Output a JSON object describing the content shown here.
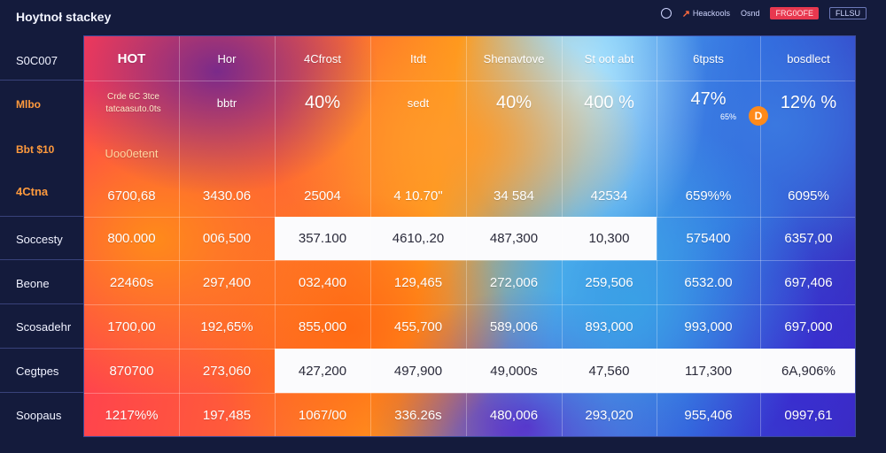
{
  "app": {
    "title": "Hoytnoł stackey"
  },
  "toolbar": {
    "link_label": "Heackools",
    "mid_label": "Osnd",
    "badge": "FRG0OFE",
    "pill": "FLLSU"
  },
  "row_labels": [
    "S0C007",
    "Mlbo",
    "Bbt $10",
    "4Ctna",
    "Soccesty",
    "Beone",
    "Scosadehr",
    "Cegtpes",
    "Soopaus"
  ],
  "headers": [
    "HOT",
    "Hor",
    "4Cfrost",
    "Itdt",
    "Shenavtove",
    "St oot abt",
    "6tpsts",
    "bosdlect"
  ],
  "row2": {
    "cell1": "Crde 6C 3tce tatcaasuto.0ts",
    "c2": "bbtr",
    "c3": "40%",
    "c4": "sedt",
    "c5": "40%",
    "c6": "400 %",
    "c7": "47%",
    "c7_sub": "65%",
    "coin": "D",
    "c8": "12% %"
  },
  "row3": {
    "c1": "Uoo0etent"
  },
  "row4": [
    "6700,68",
    "3430.06",
    "25004",
    "4 10.70\"",
    "34 584",
    "42534",
    "659%%",
    "6095%"
  ],
  "rows": [
    [
      "800.000",
      "006,500",
      "357.100",
      "4610,.20",
      "487,300",
      "10,300",
      "575400",
      "6357,00"
    ],
    [
      "22460s",
      "297,400",
      "032,400",
      "129,465",
      "272,006",
      "259,506",
      "6532.00",
      "697,406"
    ],
    [
      "1700,00",
      "192,65%",
      "855,000",
      "455,700",
      "589,006",
      "893,000",
      "993,000",
      "697,000"
    ],
    [
      "870700",
      "273,060",
      "427,200",
      "497,900",
      "49,000s",
      "47,560",
      "117,300",
      "6A,906%"
    ],
    [
      "1217%%",
      "197,485",
      "1067/00",
      "336.26s",
      "480,006",
      "293,020",
      "955,406",
      "0997,61"
    ]
  ],
  "colors": {
    "background": "#141b3c",
    "badge": "#e8384f",
    "warm_label": "#ff9a3d",
    "coin": "#ff8a1a"
  }
}
